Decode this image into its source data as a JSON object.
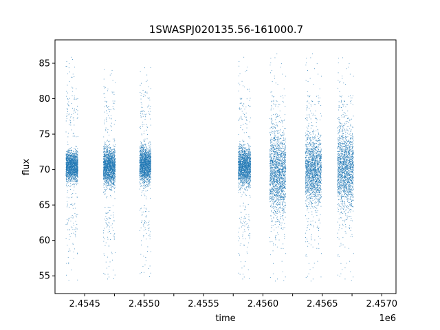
{
  "chart_data": {
    "type": "scatter",
    "title": "1SWASPJ020135.56-161000.7",
    "xlabel": "time",
    "ylabel": "flux",
    "x_offset_label": "1e6",
    "xlim": [
      2454250,
      2457120
    ],
    "ylim": [
      52.5,
      88.3
    ],
    "x_ticks": [
      2454500,
      2454750,
      2455000,
      2455250,
      2455500,
      2455750,
      2456000,
      2456250,
      2456500,
      2456750,
      2457000
    ],
    "x_tick_labels": [
      "2.4545",
      "",
      "2.4550",
      "",
      "2.4555",
      "",
      "2.4560",
      "",
      "2.4565",
      "",
      "2.4570"
    ],
    "y_ticks": [
      55,
      60,
      65,
      70,
      75,
      80,
      85
    ],
    "y_tick_labels": [
      "55",
      "60",
      "65",
      "70",
      "75",
      "80",
      "85"
    ],
    "grid": false,
    "marker_color": "#1f77b4",
    "seasons": [
      {
        "x": [
          2454340,
          2454440
        ],
        "core_y": [
          67.5,
          73.5
        ],
        "spread_y": [
          54.2,
          86.0
        ]
      },
      {
        "x": [
          2454655,
          2454755
        ],
        "core_y": [
          66.5,
          74.5
        ],
        "spread_y": [
          54.5,
          85.5
        ]
      },
      {
        "x": [
          2454960,
          2455055
        ],
        "core_y": [
          67.0,
          74.5
        ],
        "spread_y": [
          54.8,
          84.5
        ]
      },
      {
        "x": [
          2455790,
          2455895
        ],
        "core_y": [
          66.5,
          74.5
        ],
        "spread_y": [
          54.5,
          86.0
        ]
      },
      {
        "x": [
          2456055,
          2456190
        ],
        "core_y": [
          61.0,
          78.5
        ],
        "spread_y": [
          54.2,
          86.5
        ]
      },
      {
        "x": [
          2456355,
          2456490
        ],
        "core_y": [
          63.0,
          77.0
        ],
        "spread_y": [
          54.2,
          86.5
        ]
      },
      {
        "x": [
          2456625,
          2456760
        ],
        "core_y": [
          62.0,
          78.5
        ],
        "spread_y": [
          54.2,
          86.5
        ]
      }
    ]
  }
}
